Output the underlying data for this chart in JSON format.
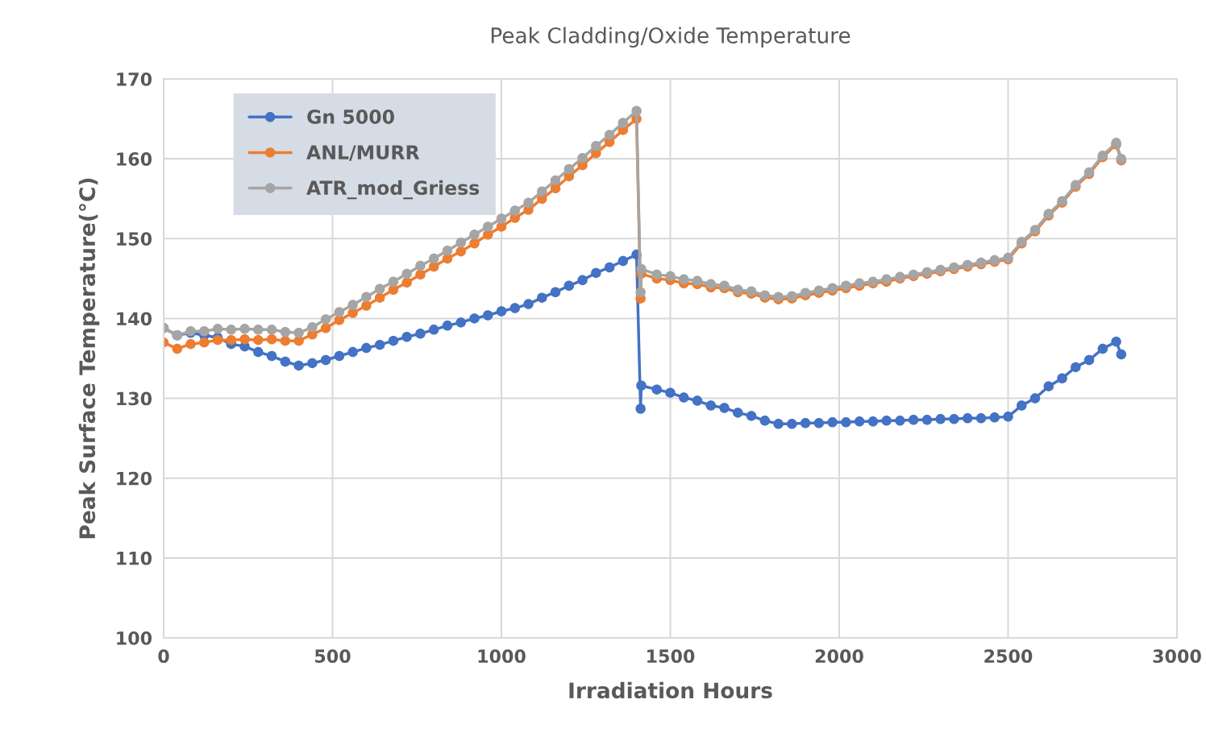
{
  "chart_data": {
    "type": "line",
    "title": "Peak Cladding/Oxide Temperature",
    "xlabel": "Irradiation Hours",
    "ylabel": "Peak Surface Temperature(°C)",
    "x": [
      0,
      40,
      80,
      120,
      160,
      200,
      240,
      280,
      320,
      360,
      400,
      440,
      480,
      520,
      560,
      600,
      640,
      680,
      720,
      760,
      800,
      840,
      880,
      920,
      960,
      1000,
      1040,
      1080,
      1120,
      1160,
      1200,
      1240,
      1280,
      1320,
      1360,
      1400,
      1412,
      1414,
      1460,
      1500,
      1540,
      1580,
      1620,
      1660,
      1700,
      1740,
      1780,
      1820,
      1860,
      1900,
      1940,
      1980,
      2020,
      2060,
      2100,
      2140,
      2180,
      2220,
      2260,
      2300,
      2340,
      2380,
      2420,
      2460,
      2500,
      2540,
      2580,
      2620,
      2660,
      2700,
      2740,
      2780,
      2820,
      2835
    ],
    "series": [
      {
        "name": "Gn 5000",
        "color": "#4472c4",
        "values": [
          138.8,
          137.9,
          138.2,
          137.9,
          137.6,
          136.8,
          136.5,
          135.8,
          135.3,
          134.6,
          134.1,
          134.4,
          134.8,
          135.3,
          135.8,
          136.3,
          136.7,
          137.2,
          137.7,
          138.1,
          138.6,
          139.1,
          139.5,
          140.0,
          140.4,
          140.9,
          141.3,
          141.8,
          142.6,
          143.3,
          144.1,
          144.8,
          145.7,
          146.4,
          147.2,
          148.0,
          128.7,
          131.6,
          131.1,
          130.7,
          130.1,
          129.7,
          129.1,
          128.8,
          128.2,
          127.8,
          127.2,
          126.8,
          126.8,
          126.9,
          126.9,
          127.0,
          127.0,
          127.1,
          127.1,
          127.2,
          127.2,
          127.3,
          127.3,
          127.4,
          127.4,
          127.5,
          127.5,
          127.6,
          127.7,
          129.1,
          130.0,
          131.5,
          132.5,
          133.9,
          134.8,
          136.2,
          137.1,
          135.5
        ]
      },
      {
        "name": "ANL/MURR",
        "color": "#ed7d31",
        "values": [
          137.0,
          136.2,
          136.8,
          137.0,
          137.3,
          137.3,
          137.4,
          137.3,
          137.4,
          137.2,
          137.2,
          138.0,
          138.8,
          139.8,
          140.7,
          141.6,
          142.6,
          143.6,
          144.5,
          145.5,
          146.5,
          147.5,
          148.4,
          149.4,
          150.5,
          151.5,
          152.6,
          153.6,
          155.0,
          156.3,
          157.8,
          159.2,
          160.7,
          162.1,
          163.6,
          165.0,
          142.5,
          145.6,
          145.0,
          144.8,
          144.4,
          144.3,
          143.9,
          143.8,
          143.3,
          143.1,
          142.6,
          142.4,
          142.5,
          142.9,
          143.2,
          143.5,
          143.8,
          144.1,
          144.4,
          144.6,
          145.0,
          145.3,
          145.6,
          145.9,
          146.2,
          146.5,
          146.8,
          147.1,
          147.4,
          149.4,
          150.9,
          152.9,
          154.5,
          156.5,
          158.1,
          160.2,
          161.8,
          159.8
        ]
      },
      {
        "name": "ATR_mod_Griess",
        "color": "#a5a5a5",
        "values": [
          138.8,
          137.9,
          138.4,
          138.4,
          138.7,
          138.6,
          138.7,
          138.6,
          138.6,
          138.3,
          138.2,
          138.9,
          139.9,
          140.8,
          141.7,
          142.7,
          143.7,
          144.6,
          145.6,
          146.6,
          147.5,
          148.5,
          149.5,
          150.5,
          151.5,
          152.5,
          153.5,
          154.5,
          155.9,
          157.3,
          158.7,
          160.1,
          161.6,
          163.0,
          164.5,
          166.0,
          143.3,
          146.2,
          145.5,
          145.3,
          144.9,
          144.7,
          144.3,
          144.1,
          143.6,
          143.4,
          142.9,
          142.7,
          142.8,
          143.2,
          143.5,
          143.8,
          144.1,
          144.4,
          144.6,
          144.9,
          145.2,
          145.5,
          145.8,
          146.1,
          146.4,
          146.7,
          147.0,
          147.3,
          147.6,
          149.6,
          151.1,
          153.1,
          154.7,
          156.7,
          158.3,
          160.4,
          162.0,
          160.0
        ]
      }
    ],
    "xlim": [
      0,
      3000
    ],
    "xticks": [
      0,
      500,
      1000,
      1500,
      2000,
      2500,
      3000
    ],
    "ylim": [
      100,
      170
    ],
    "yticks": [
      100,
      110,
      120,
      130,
      140,
      150,
      160,
      170
    ],
    "grid": true,
    "legend": "top left",
    "marker": "circle",
    "line_style": "solid"
  }
}
